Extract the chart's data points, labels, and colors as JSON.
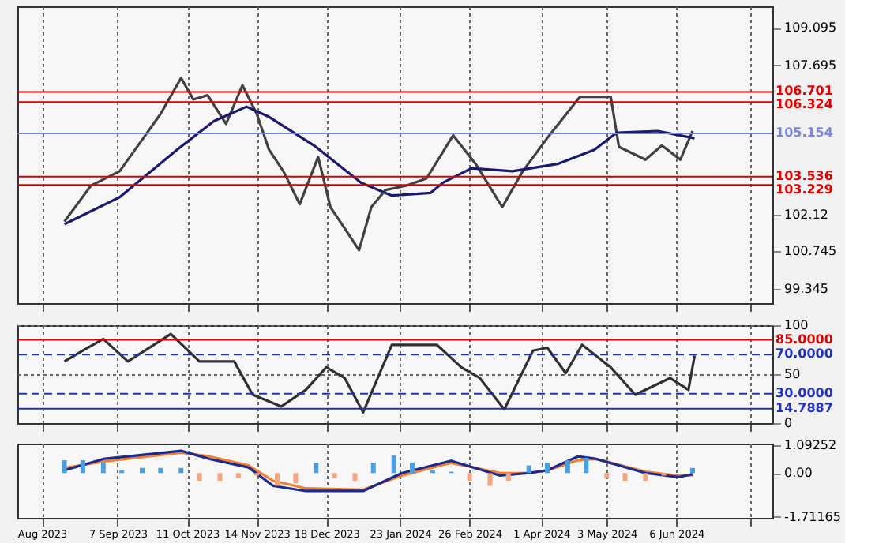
{
  "chart_data": [
    {
      "type": "line",
      "xlim": [
        "2023-07-20",
        "2024-07-23"
      ],
      "xticks": [
        {
          "value": "2023-08-01",
          "label": null
        },
        {
          "value": "2023-09-07",
          "label": null
        },
        {
          "value": "2023-10-11",
          "label": null
        },
        {
          "value": "2023-11-14",
          "label": null
        },
        {
          "value": "2023-12-18",
          "label": null
        },
        {
          "value": "2024-01-23",
          "label": null
        },
        {
          "value": "2024-02-26",
          "label": null
        },
        {
          "value": "2024-04-01",
          "label": null
        },
        {
          "value": "2024-05-03",
          "label": null
        },
        {
          "value": "2024-06-06",
          "label": null
        },
        {
          "value": "2024-07-12",
          "label": null
        }
      ],
      "ylim": [
        98.81,
        109.9
      ],
      "yticks": [
        99.345,
        100.745,
        102.12,
        107.695,
        109.095
      ],
      "grid": "x",
      "tick_labels": "y",
      "series": [
        {
          "color": "#404040",
          "x": [
            "2023-08-12",
            "2023-08-25",
            "2023-09-08",
            "2023-09-18",
            "2023-09-28",
            "2023-10-08",
            "2023-10-14",
            "2023-10-21",
            "2023-10-30",
            "2023-11-07",
            "2023-11-14",
            "2023-11-20",
            "2023-11-27",
            "2023-12-05",
            "2023-12-14",
            "2023-12-20",
            "2023-12-27",
            "2024-01-03",
            "2024-01-09",
            "2024-01-16",
            "2024-01-26",
            "2024-02-05",
            "2024-02-18",
            "2024-02-29",
            "2024-03-13",
            "2024-03-23",
            "2024-04-05",
            "2024-04-20",
            "2024-05-05",
            "2024-05-09",
            "2024-05-22",
            "2024-05-30",
            "2024-06-08",
            "2024-06-14"
          ],
          "values": [
            101.86,
            103.2,
            103.74,
            104.81,
            105.88,
            107.22,
            106.42,
            106.58,
            105.51,
            106.95,
            105.88,
            104.54,
            103.74,
            102.51,
            104.27,
            102.4,
            101.6,
            100.79,
            102.4,
            103.04,
            103.2,
            103.47,
            105.08,
            104.01,
            102.4,
            103.74,
            105.08,
            106.52,
            106.52,
            104.65,
            104.17,
            104.7,
            104.17,
            105.24
          ]
        },
        {
          "color": "#1a1a6e",
          "x": [
            "2023-08-12",
            "2023-09-08",
            "2023-10-06",
            "2023-10-24",
            "2023-11-09",
            "2023-11-20",
            "2023-12-12",
            "2024-01-04",
            "2024-01-19",
            "2024-02-07",
            "2024-02-13",
            "2024-02-27",
            "2024-03-18",
            "2024-04-09",
            "2024-04-27",
            "2024-05-08",
            "2024-05-28",
            "2024-06-15"
          ],
          "values": [
            101.76,
            102.77,
            104.54,
            105.61,
            106.15,
            105.77,
            104.7,
            103.31,
            102.83,
            102.93,
            103.31,
            103.85,
            103.74,
            104.01,
            104.54,
            105.18,
            105.24,
            104.97
          ]
        }
      ],
      "ref_lines": [
        {
          "axis": "y",
          "value": 106.701,
          "label": "106.701",
          "color": "#e00000"
        },
        {
          "axis": "y",
          "value": 106.324,
          "label": "106.324",
          "color": "#e00000"
        },
        {
          "axis": "y",
          "value": 105.154,
          "label": "105.154",
          "color": "#7a86d8"
        },
        {
          "axis": "y",
          "value": 103.536,
          "label": "103.536",
          "color": "#e00000"
        },
        {
          "axis": "y",
          "value": 103.229,
          "label": "103.229",
          "color": "#e00000"
        }
      ]
    },
    {
      "type": "line",
      "xlim": [
        "2023-07-20",
        "2024-07-23"
      ],
      "xticks": [
        {
          "value": "2023-08-01",
          "label": null
        },
        {
          "value": "2023-09-07",
          "label": null
        },
        {
          "value": "2023-10-11",
          "label": null
        },
        {
          "value": "2023-11-14",
          "label": null
        },
        {
          "value": "2023-12-18",
          "label": null
        },
        {
          "value": "2024-01-23",
          "label": null
        },
        {
          "value": "2024-02-26",
          "label": null
        },
        {
          "value": "2024-04-01",
          "label": null
        },
        {
          "value": "2024-05-03",
          "label": null
        },
        {
          "value": "2024-06-06",
          "label": null
        },
        {
          "value": "2024-07-12",
          "label": null
        }
      ],
      "ylim": [
        0,
        100
      ],
      "yticks": [
        0,
        50,
        100
      ],
      "grid": true,
      "tick_labels": "y",
      "series": [
        {
          "color": "#303030",
          "x": [
            "2023-08-12",
            "2023-08-21",
            "2023-08-31",
            "2023-09-12",
            "2023-10-03",
            "2023-10-17",
            "2023-11-03",
            "2023-11-12",
            "2023-11-26",
            "2023-12-08",
            "2023-12-18",
            "2023-12-27",
            "2024-01-05",
            "2024-01-19",
            "2024-02-10",
            "2024-02-22",
            "2024-03-02",
            "2024-03-14",
            "2024-03-28",
            "2024-04-04",
            "2024-04-13",
            "2024-04-21",
            "2024-05-05",
            "2024-05-17",
            "2024-06-03",
            "2024-06-12",
            "2024-06-15"
          ],
          "values": [
            63,
            74,
            86,
            63,
            91,
            63,
            63,
            29,
            17,
            34,
            57,
            46,
            11,
            80,
            80,
            57,
            46,
            14,
            74,
            77,
            51,
            80,
            57,
            29,
            46,
            34,
            69
          ]
        }
      ],
      "ref_lines": [
        {
          "axis": "y",
          "value": 85,
          "label": "85.0000",
          "color": "#e00000"
        },
        {
          "axis": "y",
          "value": 70,
          "label": "70.0000",
          "color": "#2030c0",
          "line_style": "dashed"
        },
        {
          "axis": "y",
          "value": 30,
          "label": "30.0000",
          "color": "#2030c0",
          "line_style": "dashed"
        },
        {
          "axis": "y",
          "value": 14.7887,
          "label": "14.7887",
          "color": "#2030c0"
        }
      ]
    },
    {
      "type": "line",
      "xlim": [
        "2023-07-20",
        "2024-07-23"
      ],
      "xticks": [
        {
          "value": "2023-08-01",
          "label": "Aug 2023"
        },
        {
          "value": "2023-09-07",
          "label": "7 Sep 2023"
        },
        {
          "value": "2023-10-11",
          "label": "11 Oct 2023"
        },
        {
          "value": "2023-11-14",
          "label": "14 Nov 2023"
        },
        {
          "value": "2023-12-18",
          "label": "18 Dec 2023"
        },
        {
          "value": "2024-01-23",
          "label": "23 Jan 2024"
        },
        {
          "value": "2024-02-26",
          "label": "26 Feb 2024"
        },
        {
          "value": "2024-04-01",
          "label": "1 Apr 2024"
        },
        {
          "value": "2024-05-03",
          "label": "3 May 2024"
        },
        {
          "value": "2024-06-06",
          "label": "6 Jun 2024"
        },
        {
          "value": "2024-07-12",
          "label": null
        }
      ],
      "ylim": [
        -1.75,
        1.15
      ],
      "yticks": [
        {
          "value": -1.71165,
          "label": "-1.71165"
        },
        {
          "value": 0,
          "label": "0.00"
        },
        {
          "value": 1.09252,
          "label": "1.09252"
        }
      ],
      "grid": "x",
      "series": [
        {
          "type": "bar",
          "x": [
            "2023-08-12",
            "2023-08-21",
            "2023-08-31",
            "2023-09-09",
            "2023-09-19",
            "2023-09-28",
            "2023-10-08",
            "2023-10-17",
            "2023-10-27",
            "2023-11-05",
            "2023-11-14",
            "2023-11-24",
            "2023-12-03",
            "2023-12-13",
            "2023-12-22",
            "2024-01-01",
            "2024-01-10",
            "2024-01-20",
            "2024-01-29",
            "2024-02-08",
            "2024-02-17",
            "2024-02-26",
            "2024-03-07",
            "2024-03-16",
            "2024-03-26",
            "2024-04-04",
            "2024-04-14",
            "2024-04-23",
            "2024-05-03",
            "2024-05-12",
            "2024-05-22",
            "2024-05-31",
            "2024-06-14"
          ],
          "values": [
            0.5,
            0.5,
            0.4,
            0.1,
            0.2,
            0.2,
            0.2,
            -0.3,
            -0.3,
            -0.2,
            -0.1,
            -0.5,
            -0.4,
            0.4,
            -0.2,
            -0.3,
            0.4,
            0.7,
            0.4,
            0.1,
            0.05,
            -0.3,
            -0.5,
            -0.3,
            0.3,
            0.4,
            0.5,
            0.6,
            -0.2,
            -0.3,
            -0.3,
            -0.1,
            0.2
          ],
          "colors": [
            "#4a9fe0",
            "#4a9fe0",
            "#4a9fe0",
            "#4a9fe0",
            "#4a9fe0",
            "#4a9fe0",
            "#4a9fe0",
            "#f4a582",
            "#f4a582",
            "#f4a582",
            "#f4a582",
            "#f4a582",
            "#f4a582",
            "#4a9fe0",
            "#f4a582",
            "#f4a582",
            "#4a9fe0",
            "#4a9fe0",
            "#4a9fe0",
            "#4a9fe0",
            "#4a9fe0",
            "#f4a582",
            "#f4a582",
            "#f4a582",
            "#4a9fe0",
            "#4a9fe0",
            "#4a9fe0",
            "#4a9fe0",
            "#f4a582",
            "#f4a582",
            "#f4a582",
            "#f4a582",
            "#4a9fe0"
          ]
        },
        {
          "color": "#f08030",
          "x": [
            "2023-08-12",
            "2023-08-31",
            "2023-10-08",
            "2023-10-22",
            "2023-11-10",
            "2023-11-22",
            "2023-12-08",
            "2024-01-05",
            "2024-01-24",
            "2024-02-17",
            "2024-03-12",
            "2024-03-26",
            "2024-04-04",
            "2024-04-19",
            "2024-04-28",
            "2024-05-22",
            "2024-06-07",
            "2024-06-14"
          ],
          "values": [
            0.2,
            0.45,
            0.8,
            0.65,
            0.3,
            -0.3,
            -0.6,
            -0.65,
            -0.1,
            0.4,
            0,
            0,
            0.1,
            0.5,
            0.55,
            0.05,
            -0.1,
            -0.08
          ]
        },
        {
          "color": "#1a2a8e",
          "x": [
            "2023-08-12",
            "2023-08-31",
            "2023-10-08",
            "2023-10-22",
            "2023-11-10",
            "2023-11-22",
            "2023-12-08",
            "2024-01-05",
            "2024-01-24",
            "2024-02-17",
            "2024-03-12",
            "2024-03-26",
            "2024-04-04",
            "2024-04-19",
            "2024-04-28",
            "2024-05-22",
            "2024-06-07",
            "2024-06-14"
          ],
          "values": [
            0.11,
            0.55,
            0.87,
            0.55,
            0.22,
            -0.5,
            -0.7,
            -0.7,
            0,
            0.48,
            -0.1,
            0,
            0.11,
            0.65,
            0.55,
            0,
            -0.16,
            -0.04
          ]
        }
      ]
    }
  ]
}
